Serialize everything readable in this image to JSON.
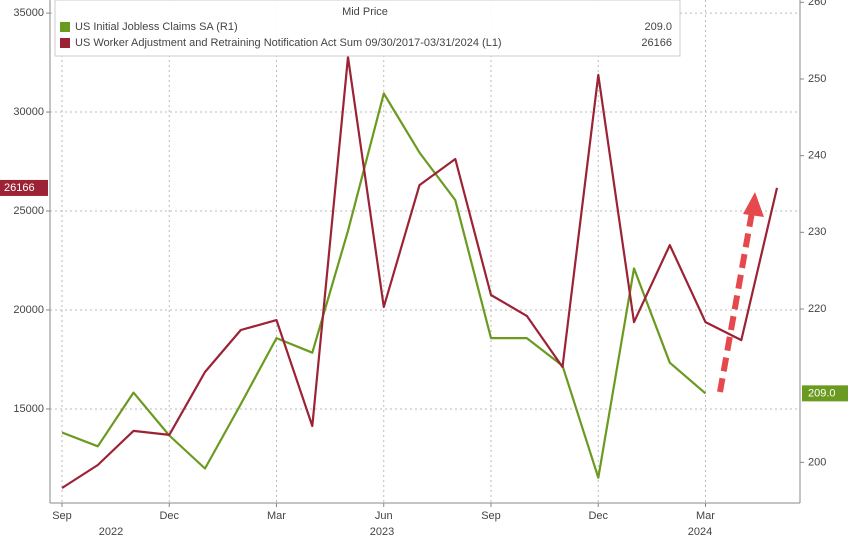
{
  "chart_data": {
    "type": "line",
    "legend_title": "Mid Price",
    "categories": [
      "Sep",
      null,
      null,
      "Dec",
      null,
      null,
      "Mar",
      null,
      null,
      "Jun",
      null,
      null,
      "Sep",
      null,
      null,
      "Dec",
      null,
      null,
      "Mar",
      null,
      null
    ],
    "year_labels": [
      "2022",
      "2023",
      "2024"
    ],
    "series": [
      {
        "name": "US Initial Jobless Claims SA (R1)",
        "last_label": "209.0",
        "color": "#6a9a1f",
        "axis": "y2",
        "values": [
          203.9,
          202.1,
          209.1,
          203.5,
          199.2,
          207.6,
          216.2,
          214.3,
          230.2,
          248.1,
          240.4,
          234.2,
          216.2,
          216.2,
          212.6,
          198.0,
          225.3,
          213.0,
          209.0,
          null,
          null
        ]
      },
      {
        "name": "US Worker Adjustment and Retraining Notification Act Sum 09/30/2017-03/31/2024 (L1)",
        "last_label": "26166",
        "color": "#9b2335",
        "axis": "y",
        "values": [
          11010,
          12170,
          13890,
          13690,
          16870,
          18990,
          19490,
          14140,
          32780,
          20150,
          26310,
          27630,
          20760,
          19700,
          17120,
          31870,
          19390,
          23280,
          19390,
          18480,
          26166
        ]
      }
    ],
    "ylim": [
      10250,
      35660
    ],
    "yticks": [
      15000,
      20000,
      25000,
      30000,
      35000
    ],
    "y2lim": [
      194.7,
      260.3
    ],
    "y2ticks": [
      200,
      220,
      230,
      240,
      250,
      260
    ],
    "grid": true
  }
}
